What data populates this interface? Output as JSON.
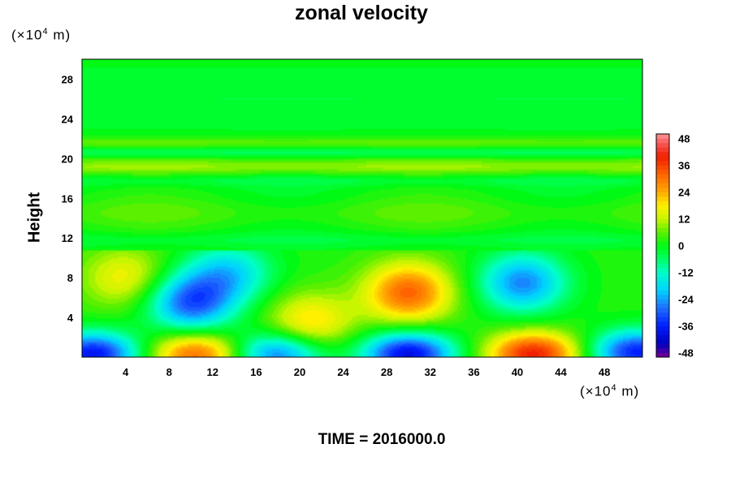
{
  "chart_data": {
    "type": "heatmap",
    "title": "zonal velocity",
    "ylabel": "Height",
    "xlabel": "",
    "x_unit": "(×10⁴ m)",
    "y_unit": "(×10⁴ m)",
    "x_unit_text": "(×10",
    "y_unit_text": "(×10",
    "unit_exp": "4",
    "unit_suffix": " m)",
    "xlim": [
      0,
      51.5
    ],
    "ylim": [
      0,
      30
    ],
    "x_ticks": [
      4,
      8,
      12,
      16,
      20,
      24,
      28,
      32,
      36,
      40,
      44,
      48
    ],
    "y_ticks": [
      4,
      8,
      12,
      16,
      20,
      24,
      28
    ],
    "colorbar": {
      "ticks": [
        -48,
        -36,
        -24,
        -12,
        0,
        12,
        24,
        36,
        48
      ],
      "range": [
        -50,
        50
      ],
      "level_step": 2
    },
    "features": [
      {
        "x": 1.0,
        "y": 0.3,
        "value": -40
      },
      {
        "x": 10.5,
        "y": 0.3,
        "value": 30
      },
      {
        "x": 18.0,
        "y": 0.3,
        "value": -30
      },
      {
        "x": 30.0,
        "y": 0.3,
        "value": -42
      },
      {
        "x": 41.5,
        "y": 0.3,
        "value": 38
      },
      {
        "x": 51.0,
        "y": 0.5,
        "value": -38
      },
      {
        "x": 10.0,
        "y": 5.5,
        "value": -32
      },
      {
        "x": 30.0,
        "y": 6.5,
        "value": 30
      },
      {
        "x": 40.5,
        "y": 7.5,
        "value": -28
      },
      {
        "x": 4.0,
        "y": 8.0,
        "value": 15
      },
      {
        "x": 21.0,
        "y": 3.5,
        "value": 18
      },
      {
        "x": 13.5,
        "y": 8.5,
        "value": -20
      }
    ],
    "caption": "TIME = 2016000.0"
  }
}
